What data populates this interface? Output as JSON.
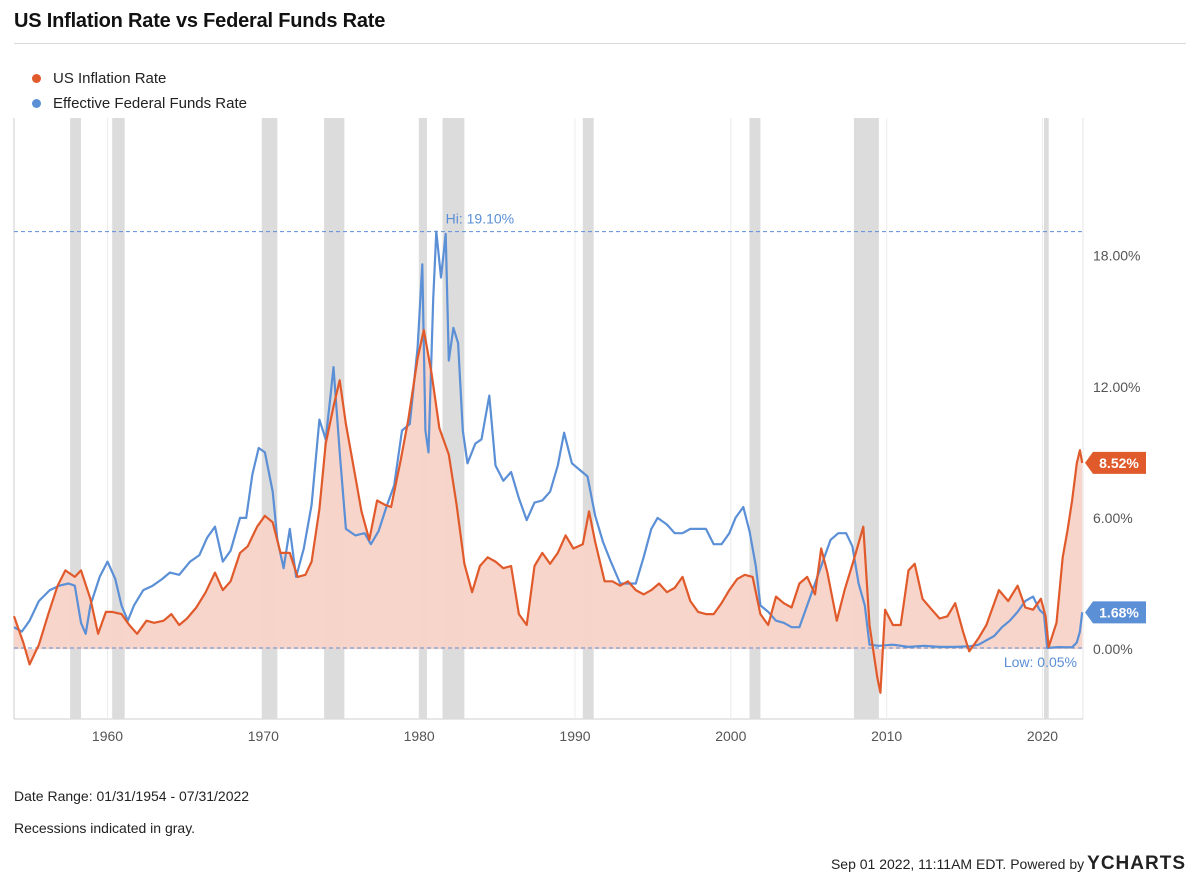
{
  "title": "US Inflation Rate vs Federal Funds Rate",
  "legend": [
    {
      "label": "US Inflation Rate",
      "color": "#e05a2b"
    },
    {
      "label": "Effective Federal Funds Rate",
      "color": "#5b8fd6"
    }
  ],
  "footer": {
    "date_range": "Date Range: 01/31/1954 - 07/31/2022",
    "recessions_note": "Recessions indicated in gray.",
    "timestamp": "Sep 01 2022, 11:11AM EDT. Powered by",
    "brand": "YCHARTS"
  },
  "chart_data": {
    "type": "line",
    "x_range": [
      1954.0,
      2022.6
    ],
    "ylim": [
      -3.2,
      24.3
    ],
    "y_ticks": [
      0,
      6,
      12,
      18
    ],
    "y_tick_labels": [
      "0.00%",
      "6.00%",
      "12.00%",
      "18.00%"
    ],
    "x_ticks": [
      1960,
      1970,
      1980,
      1990,
      2000,
      2010,
      2020
    ],
    "x_tick_labels": [
      "1960",
      "1970",
      "1980",
      "1990",
      "2000",
      "2010",
      "2020"
    ],
    "grid": "vertical",
    "legend_position": "top-left",
    "y_axis_side": "right",
    "recessions": [
      [
        1957.6,
        1958.3
      ],
      [
        1960.3,
        1961.1
      ],
      [
        1969.9,
        1970.9
      ],
      [
        1973.9,
        1975.2
      ],
      [
        1980.0,
        1980.5
      ],
      [
        1981.5,
        1982.9
      ],
      [
        1990.5,
        1991.2
      ],
      [
        2001.2,
        2001.9
      ],
      [
        2007.9,
        2009.5
      ],
      [
        2020.1,
        2020.4
      ]
    ],
    "recessions_color": "#dcdcdc",
    "reference_lines": [
      {
        "label": "Hi: 19.10%",
        "value": 19.1,
        "color": "#5b8fd6"
      },
      {
        "label": "Low: 0.05%",
        "value": 0.05,
        "color": "#5b8fd6"
      }
    ],
    "end_labels": [
      {
        "label": "8.52%",
        "value": 8.52,
        "color": "#e05a2b"
      },
      {
        "label": "1.68%",
        "value": 1.68,
        "color": "#5b8fd6"
      }
    ],
    "series": [
      {
        "name": "US Inflation Rate",
        "color": "#e05a2b",
        "fill": "#f8d3c7",
        "points": [
          [
            1954.0,
            1.5
          ],
          [
            1954.6,
            0.3
          ],
          [
            1955.0,
            -0.7
          ],
          [
            1955.6,
            0.2
          ],
          [
            1956.2,
            1.6
          ],
          [
            1956.8,
            2.9
          ],
          [
            1957.3,
            3.6
          ],
          [
            1957.9,
            3.3
          ],
          [
            1958.3,
            3.6
          ],
          [
            1958.9,
            2.3
          ],
          [
            1959.4,
            0.7
          ],
          [
            1959.9,
            1.7
          ],
          [
            1960.3,
            1.7
          ],
          [
            1960.9,
            1.6
          ],
          [
            1961.4,
            1.1
          ],
          [
            1961.9,
            0.7
          ],
          [
            1962.5,
            1.3
          ],
          [
            1963.0,
            1.2
          ],
          [
            1963.6,
            1.3
          ],
          [
            1964.1,
            1.6
          ],
          [
            1964.6,
            1.1
          ],
          [
            1965.1,
            1.4
          ],
          [
            1965.7,
            1.9
          ],
          [
            1966.3,
            2.6
          ],
          [
            1966.9,
            3.5
          ],
          [
            1967.4,
            2.7
          ],
          [
            1967.9,
            3.1
          ],
          [
            1968.5,
            4.4
          ],
          [
            1969.0,
            4.7
          ],
          [
            1969.6,
            5.6
          ],
          [
            1970.1,
            6.1
          ],
          [
            1970.6,
            5.8
          ],
          [
            1971.1,
            4.4
          ],
          [
            1971.7,
            4.4
          ],
          [
            1972.2,
            3.3
          ],
          [
            1972.7,
            3.4
          ],
          [
            1973.1,
            4.0
          ],
          [
            1973.6,
            6.4
          ],
          [
            1974.0,
            9.4
          ],
          [
            1974.5,
            11.1
          ],
          [
            1974.9,
            12.3
          ],
          [
            1975.3,
            10.3
          ],
          [
            1975.9,
            7.9
          ],
          [
            1976.3,
            6.3
          ],
          [
            1976.8,
            5.0
          ],
          [
            1977.3,
            6.8
          ],
          [
            1977.8,
            6.6
          ],
          [
            1978.2,
            6.5
          ],
          [
            1978.8,
            8.6
          ],
          [
            1979.3,
            10.5
          ],
          [
            1979.9,
            13.3
          ],
          [
            1980.3,
            14.6
          ],
          [
            1980.8,
            12.6
          ],
          [
            1981.3,
            10.1
          ],
          [
            1981.9,
            8.9
          ],
          [
            1982.4,
            6.6
          ],
          [
            1982.9,
            3.9
          ],
          [
            1983.4,
            2.6
          ],
          [
            1983.9,
            3.8
          ],
          [
            1984.4,
            4.2
          ],
          [
            1984.9,
            4.0
          ],
          [
            1985.4,
            3.7
          ],
          [
            1985.9,
            3.8
          ],
          [
            1986.4,
            1.6
          ],
          [
            1986.9,
            1.1
          ],
          [
            1987.4,
            3.8
          ],
          [
            1987.9,
            4.4
          ],
          [
            1988.4,
            3.9
          ],
          [
            1988.9,
            4.4
          ],
          [
            1989.4,
            5.2
          ],
          [
            1989.9,
            4.6
          ],
          [
            1990.5,
            4.8
          ],
          [
            1990.9,
            6.3
          ],
          [
            1991.3,
            4.9
          ],
          [
            1991.9,
            3.1
          ],
          [
            1992.4,
            3.1
          ],
          [
            1992.9,
            2.9
          ],
          [
            1993.4,
            3.1
          ],
          [
            1993.9,
            2.7
          ],
          [
            1994.4,
            2.5
          ],
          [
            1994.9,
            2.7
          ],
          [
            1995.4,
            3.0
          ],
          [
            1995.9,
            2.6
          ],
          [
            1996.4,
            2.8
          ],
          [
            1996.9,
            3.3
          ],
          [
            1997.4,
            2.2
          ],
          [
            1997.9,
            1.7
          ],
          [
            1998.4,
            1.6
          ],
          [
            1998.9,
            1.6
          ],
          [
            1999.4,
            2.1
          ],
          [
            1999.9,
            2.7
          ],
          [
            2000.4,
            3.2
          ],
          [
            2000.9,
            3.4
          ],
          [
            2001.4,
            3.3
          ],
          [
            2001.9,
            1.6
          ],
          [
            2002.4,
            1.1
          ],
          [
            2002.9,
            2.4
          ],
          [
            2003.4,
            2.1
          ],
          [
            2003.9,
            1.9
          ],
          [
            2004.4,
            3.0
          ],
          [
            2004.9,
            3.3
          ],
          [
            2005.4,
            2.5
          ],
          [
            2005.8,
            4.6
          ],
          [
            2006.2,
            3.5
          ],
          [
            2006.8,
            1.3
          ],
          [
            2007.3,
            2.7
          ],
          [
            2007.9,
            4.1
          ],
          [
            2008.5,
            5.6
          ],
          [
            2008.9,
            1.1
          ],
          [
            2009.4,
            -1.3
          ],
          [
            2009.6,
            -2.0
          ],
          [
            2009.9,
            1.8
          ],
          [
            2010.4,
            1.1
          ],
          [
            2010.9,
            1.1
          ],
          [
            2011.4,
            3.6
          ],
          [
            2011.8,
            3.9
          ],
          [
            2012.3,
            2.3
          ],
          [
            2012.9,
            1.8
          ],
          [
            2013.4,
            1.4
          ],
          [
            2013.9,
            1.5
          ],
          [
            2014.4,
            2.1
          ],
          [
            2014.9,
            0.8
          ],
          [
            2015.3,
            -0.1
          ],
          [
            2015.9,
            0.5
          ],
          [
            2016.4,
            1.1
          ],
          [
            2016.9,
            2.1
          ],
          [
            2017.2,
            2.7
          ],
          [
            2017.8,
            2.2
          ],
          [
            2018.4,
            2.9
          ],
          [
            2018.9,
            1.9
          ],
          [
            2019.4,
            1.8
          ],
          [
            2019.9,
            2.3
          ],
          [
            2020.2,
            1.5
          ],
          [
            2020.4,
            0.1
          ],
          [
            2020.9,
            1.2
          ],
          [
            2021.3,
            4.2
          ],
          [
            2021.6,
            5.4
          ],
          [
            2021.9,
            6.8
          ],
          [
            2022.2,
            8.5
          ],
          [
            2022.4,
            9.1
          ],
          [
            2022.55,
            8.52
          ]
        ]
      },
      {
        "name": "Effective Federal Funds Rate",
        "color": "#5b8fd6",
        "points": [
          [
            1954.0,
            1.0
          ],
          [
            1954.5,
            0.8
          ],
          [
            1955.0,
            1.3
          ],
          [
            1955.6,
            2.2
          ],
          [
            1956.3,
            2.7
          ],
          [
            1956.9,
            2.9
          ],
          [
            1957.5,
            3.0
          ],
          [
            1957.9,
            2.9
          ],
          [
            1958.3,
            1.2
          ],
          [
            1958.6,
            0.7
          ],
          [
            1958.9,
            2.0
          ],
          [
            1959.5,
            3.3
          ],
          [
            1960.0,
            4.0
          ],
          [
            1960.5,
            3.2
          ],
          [
            1960.9,
            2.0
          ],
          [
            1961.3,
            1.3
          ],
          [
            1961.7,
            2.0
          ],
          [
            1962.3,
            2.7
          ],
          [
            1962.9,
            2.9
          ],
          [
            1963.5,
            3.2
          ],
          [
            1964.0,
            3.5
          ],
          [
            1964.6,
            3.4
          ],
          [
            1965.3,
            4.0
          ],
          [
            1965.9,
            4.3
          ],
          [
            1966.4,
            5.1
          ],
          [
            1966.9,
            5.6
          ],
          [
            1967.4,
            4.0
          ],
          [
            1967.9,
            4.5
          ],
          [
            1968.5,
            6.0
          ],
          [
            1968.9,
            6.0
          ],
          [
            1969.3,
            8.0
          ],
          [
            1969.7,
            9.2
          ],
          [
            1970.1,
            9.0
          ],
          [
            1970.6,
            7.2
          ],
          [
            1970.9,
            5.0
          ],
          [
            1971.3,
            3.7
          ],
          [
            1971.7,
            5.5
          ],
          [
            1972.1,
            3.3
          ],
          [
            1972.6,
            4.6
          ],
          [
            1973.1,
            6.6
          ],
          [
            1973.6,
            10.5
          ],
          [
            1974.0,
            9.6
          ],
          [
            1974.3,
            11.5
          ],
          [
            1974.5,
            12.9
          ],
          [
            1974.9,
            9.0
          ],
          [
            1975.3,
            5.5
          ],
          [
            1975.9,
            5.2
          ],
          [
            1976.5,
            5.3
          ],
          [
            1976.9,
            4.8
          ],
          [
            1977.4,
            5.4
          ],
          [
            1977.9,
            6.5
          ],
          [
            1978.4,
            7.5
          ],
          [
            1978.9,
            10.0
          ],
          [
            1979.4,
            10.3
          ],
          [
            1979.9,
            13.8
          ],
          [
            1980.2,
            17.6
          ],
          [
            1980.4,
            10.0
          ],
          [
            1980.6,
            9.0
          ],
          [
            1980.9,
            16.0
          ],
          [
            1981.1,
            19.1
          ],
          [
            1981.4,
            17.0
          ],
          [
            1981.7,
            19.0
          ],
          [
            1981.9,
            13.2
          ],
          [
            1982.2,
            14.7
          ],
          [
            1982.5,
            14.0
          ],
          [
            1982.8,
            10.0
          ],
          [
            1983.1,
            8.5
          ],
          [
            1983.6,
            9.4
          ],
          [
            1984.0,
            9.6
          ],
          [
            1984.5,
            11.6
          ],
          [
            1984.9,
            8.4
          ],
          [
            1985.4,
            7.7
          ],
          [
            1985.9,
            8.1
          ],
          [
            1986.4,
            6.9
          ],
          [
            1986.9,
            5.9
          ],
          [
            1987.4,
            6.7
          ],
          [
            1987.9,
            6.8
          ],
          [
            1988.4,
            7.2
          ],
          [
            1988.9,
            8.4
          ],
          [
            1989.3,
            9.9
          ],
          [
            1989.8,
            8.5
          ],
          [
            1990.3,
            8.2
          ],
          [
            1990.8,
            7.9
          ],
          [
            1991.3,
            6.1
          ],
          [
            1991.8,
            4.9
          ],
          [
            1992.3,
            4.0
          ],
          [
            1992.9,
            3.0
          ],
          [
            1993.4,
            3.0
          ],
          [
            1993.9,
            3.0
          ],
          [
            1994.4,
            4.2
          ],
          [
            1994.9,
            5.5
          ],
          [
            1995.3,
            6.0
          ],
          [
            1995.9,
            5.7
          ],
          [
            1996.4,
            5.3
          ],
          [
            1996.9,
            5.3
          ],
          [
            1997.4,
            5.5
          ],
          [
            1997.9,
            5.5
          ],
          [
            1998.4,
            5.5
          ],
          [
            1998.9,
            4.8
          ],
          [
            1999.4,
            4.8
          ],
          [
            1999.9,
            5.3
          ],
          [
            2000.3,
            6.0
          ],
          [
            2000.8,
            6.5
          ],
          [
            2001.2,
            5.4
          ],
          [
            2001.6,
            3.8
          ],
          [
            2001.9,
            2.0
          ],
          [
            2002.4,
            1.7
          ],
          [
            2002.9,
            1.3
          ],
          [
            2003.4,
            1.2
          ],
          [
            2003.9,
            1.0
          ],
          [
            2004.4,
            1.0
          ],
          [
            2004.9,
            2.0
          ],
          [
            2005.4,
            3.0
          ],
          [
            2005.9,
            4.0
          ],
          [
            2006.4,
            5.0
          ],
          [
            2006.9,
            5.3
          ],
          [
            2007.4,
            5.3
          ],
          [
            2007.8,
            4.7
          ],
          [
            2008.2,
            3.0
          ],
          [
            2008.6,
            2.0
          ],
          [
            2008.9,
            0.2
          ],
          [
            2009.5,
            0.15
          ],
          [
            2010.4,
            0.2
          ],
          [
            2011.4,
            0.1
          ],
          [
            2012.4,
            0.15
          ],
          [
            2013.4,
            0.1
          ],
          [
            2014.4,
            0.1
          ],
          [
            2015.4,
            0.13
          ],
          [
            2015.9,
            0.2
          ],
          [
            2016.4,
            0.4
          ],
          [
            2016.9,
            0.6
          ],
          [
            2017.4,
            1.0
          ],
          [
            2017.9,
            1.3
          ],
          [
            2018.4,
            1.7
          ],
          [
            2018.9,
            2.2
          ],
          [
            2019.4,
            2.4
          ],
          [
            2019.8,
            1.8
          ],
          [
            2020.1,
            1.6
          ],
          [
            2020.3,
            0.05
          ],
          [
            2021.0,
            0.09
          ],
          [
            2021.9,
            0.08
          ],
          [
            2022.2,
            0.3
          ],
          [
            2022.4,
            0.8
          ],
          [
            2022.55,
            1.68
          ]
        ]
      }
    ]
  }
}
